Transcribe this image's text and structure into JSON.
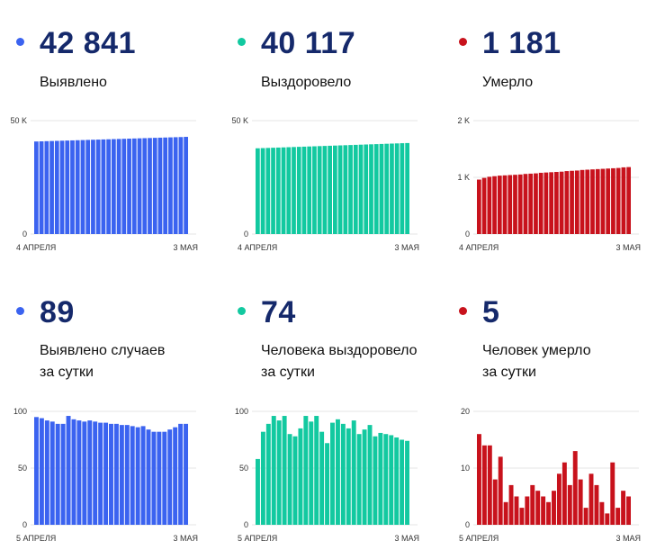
{
  "panels": [
    {
      "value": "42 841",
      "label": [
        "Выявлено"
      ],
      "color": "#3b63f0",
      "chart_data": {
        "type": "bar",
        "ylim": [
          0,
          50000
        ],
        "ticks": [
          "0",
          "50 K"
        ],
        "tick_values": [
          0,
          50000
        ],
        "x_start": "4 АПРЕЛЯ",
        "x_end": "3 МАЯ",
        "values": [
          40800,
          40870,
          40940,
          41010,
          41080,
          41150,
          41220,
          41290,
          41360,
          41430,
          41500,
          41570,
          41640,
          41710,
          41780,
          41850,
          41920,
          41990,
          42060,
          42130,
          42200,
          42270,
          42340,
          42410,
          42480,
          42550,
          42620,
          42690,
          42752,
          42841
        ]
      }
    },
    {
      "value": "40 117",
      "label": [
        "Выздоровело"
      ],
      "color": "#12c9a0",
      "chart_data": {
        "type": "bar",
        "ylim": [
          0,
          50000
        ],
        "ticks": [
          "0",
          "50 K"
        ],
        "tick_values": [
          0,
          50000
        ],
        "x_start": "4 АПРЕЛЯ",
        "x_end": "3 МАЯ",
        "values": [
          37800,
          37880,
          37960,
          38040,
          38120,
          38200,
          38280,
          38360,
          38440,
          38520,
          38600,
          38680,
          38760,
          38840,
          38920,
          39000,
          39080,
          39160,
          39240,
          39320,
          39400,
          39480,
          39560,
          39640,
          39720,
          39800,
          39880,
          39960,
          40043,
          40117
        ]
      }
    },
    {
      "value": "1 181",
      "label": [
        "Умерло"
      ],
      "color": "#c8121c",
      "chart_data": {
        "type": "bar",
        "ylim": [
          0,
          2000
        ],
        "ticks": [
          "0",
          "1 K",
          "2 K"
        ],
        "tick_values": [
          0,
          1000,
          2000
        ],
        "x_start": "4 АПРЕЛЯ",
        "x_end": "3 МАЯ",
        "values": [
          960,
          990,
          1010,
          1020,
          1030,
          1035,
          1040,
          1045,
          1050,
          1060,
          1065,
          1070,
          1080,
          1085,
          1090,
          1095,
          1100,
          1110,
          1115,
          1120,
          1130,
          1135,
          1140,
          1145,
          1150,
          1155,
          1160,
          1165,
          1176,
          1181
        ]
      }
    },
    {
      "value": "89",
      "label": [
        "Выявлено случаев",
        "за сутки"
      ],
      "color": "#3b63f0",
      "chart_data": {
        "type": "bar",
        "ylim": [
          0,
          100
        ],
        "ticks": [
          "0",
          "50",
          "100"
        ],
        "tick_values": [
          0,
          50,
          100
        ],
        "x_start": "5 АПРЕЛЯ",
        "x_end": "3 МАЯ",
        "values": [
          95,
          94,
          92,
          91,
          89,
          89,
          96,
          93,
          92,
          91,
          92,
          91,
          90,
          90,
          89,
          89,
          88,
          88,
          87,
          86,
          87,
          84,
          82,
          82,
          82,
          84,
          86,
          89,
          89
        ]
      }
    },
    {
      "value": "74",
      "label": [
        "Человека выздоровело",
        "за сутки"
      ],
      "color": "#12c9a0",
      "chart_data": {
        "type": "bar",
        "ylim": [
          0,
          100
        ],
        "ticks": [
          "0",
          "50",
          "100"
        ],
        "tick_values": [
          0,
          50,
          100
        ],
        "x_start": "5 АПРЕЛЯ",
        "x_end": "3 МАЯ",
        "values": [
          58,
          82,
          89,
          96,
          92,
          96,
          80,
          78,
          85,
          96,
          91,
          96,
          82,
          72,
          90,
          93,
          89,
          85,
          92,
          80,
          84,
          88,
          78,
          81,
          80,
          79,
          77,
          75,
          74
        ]
      }
    },
    {
      "value": "5",
      "label": [
        "Человек умерло",
        "за сутки"
      ],
      "color": "#c8121c",
      "chart_data": {
        "type": "bar",
        "ylim": [
          0,
          20
        ],
        "ticks": [
          "0",
          "10",
          "20"
        ],
        "tick_values": [
          0,
          10,
          20
        ],
        "x_start": "5 АПРЕЛЯ",
        "x_end": "3 МАЯ",
        "values": [
          16,
          14,
          14,
          8,
          12,
          4,
          7,
          5,
          3,
          5,
          7,
          6,
          5,
          4,
          6,
          9,
          11,
          7,
          13,
          8,
          3,
          9,
          7,
          4,
          2,
          11,
          3,
          6,
          5
        ]
      }
    }
  ]
}
